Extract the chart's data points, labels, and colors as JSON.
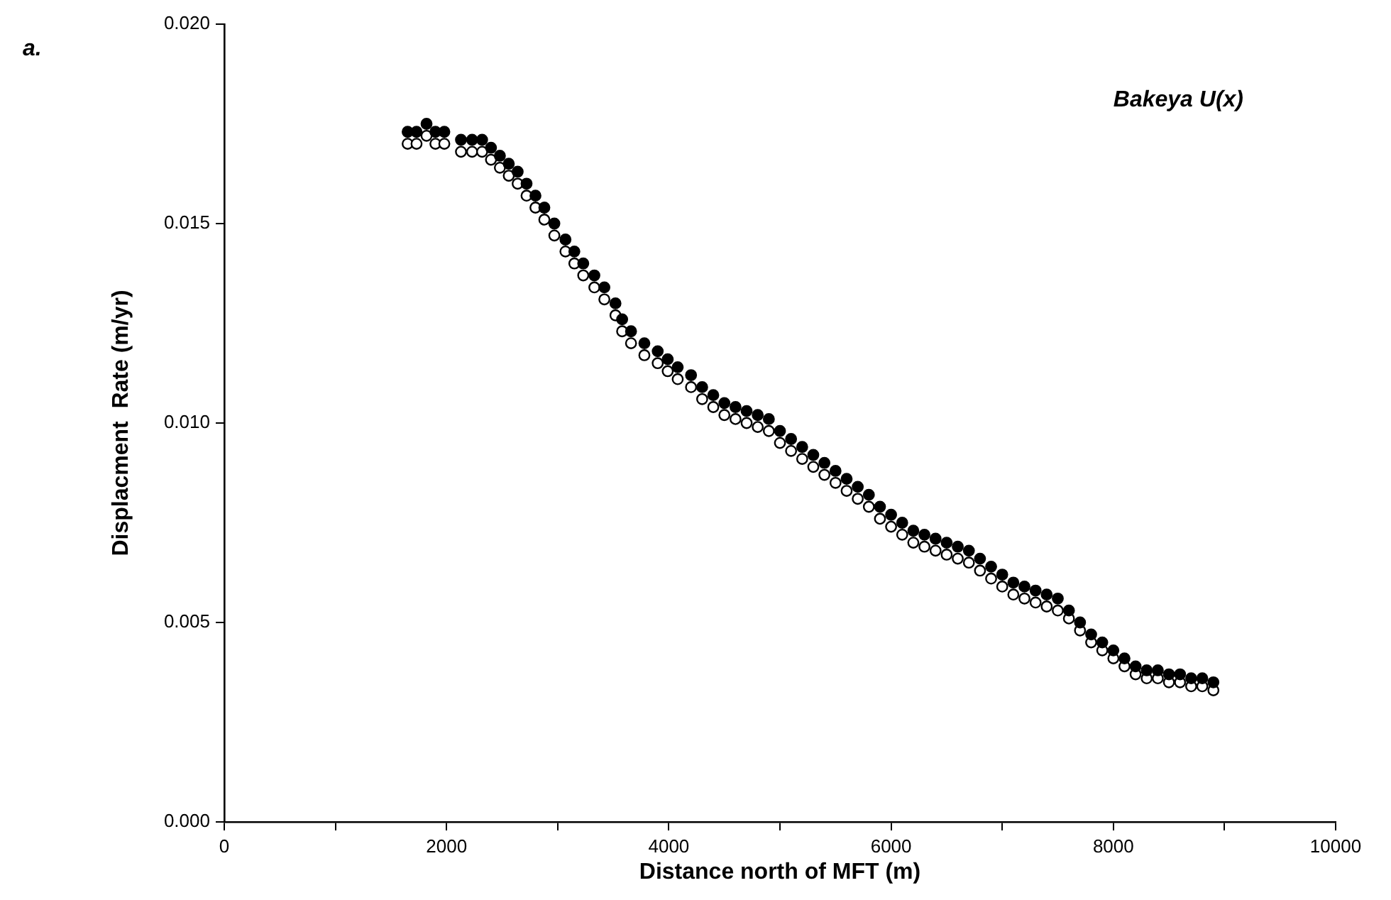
{
  "chart_data": {
    "type": "scatter",
    "xlabel": "Distance north of MFT (m)",
    "ylabel": "Displacment  Rate (m/yr)",
    "annotations": [
      "a.",
      "Bakeya U(x)"
    ],
    "x": [
      1650,
      1730,
      1820,
      1900,
      1980,
      2130,
      2230,
      2320,
      2400,
      2480,
      2560,
      2640,
      2720,
      2800,
      2880,
      2970,
      3070,
      3150,
      3230,
      3330,
      3420,
      3520,
      3580,
      3660,
      3780,
      3900,
      3990,
      4080,
      4200,
      4300,
      4400,
      4500,
      4600,
      4700,
      4800,
      4900,
      5000,
      5100,
      5200,
      5300,
      5400,
      5500,
      5600,
      5700,
      5800,
      5900,
      6000,
      6100,
      6200,
      6300,
      6400,
      6500,
      6600,
      6700,
      6800,
      6900,
      7000,
      7100,
      7200,
      7300,
      7400,
      7500,
      7600,
      7700,
      7800,
      7900,
      8000,
      8100,
      8200,
      8300,
      8400,
      8500,
      8600,
      8700,
      8800,
      8900
    ],
    "series": [
      {
        "color": "#000000",
        "values": [
          0.0173,
          0.0173,
          0.0175,
          0.0173,
          0.0173,
          0.0171,
          0.0171,
          0.0171,
          0.0169,
          0.0167,
          0.0165,
          0.0163,
          0.016,
          0.0157,
          0.0154,
          0.015,
          0.0146,
          0.0143,
          0.014,
          0.0137,
          0.0134,
          0.013,
          0.0126,
          0.0123,
          0.012,
          0.0118,
          0.0116,
          0.0114,
          0.0112,
          0.0109,
          0.0107,
          0.0105,
          0.0104,
          0.0103,
          0.0102,
          0.0101,
          0.0098,
          0.0096,
          0.0094,
          0.0092,
          0.009,
          0.0088,
          0.0086,
          0.0084,
          0.0082,
          0.0079,
          0.0077,
          0.0075,
          0.0073,
          0.0072,
          0.0071,
          0.007,
          0.0069,
          0.0068,
          0.0066,
          0.0064,
          0.0062,
          0.006,
          0.0059,
          0.0058,
          0.0057,
          0.0056,
          0.0053,
          0.005,
          0.0047,
          0.0045,
          0.0043,
          0.0041,
          0.0039,
          0.0038,
          0.0038,
          0.0037,
          0.0037,
          0.0036,
          0.0036,
          0.0035
        ]
      },
      {
        "color": "#ffffff",
        "values": [
          0.017,
          0.017,
          0.0172,
          0.017,
          0.017,
          0.0168,
          0.0168,
          0.0168,
          0.0166,
          0.0164,
          0.0162,
          0.016,
          0.0157,
          0.0154,
          0.0151,
          0.0147,
          0.0143,
          0.014,
          0.0137,
          0.0134,
          0.0131,
          0.0127,
          0.0123,
          0.012,
          0.0117,
          0.0115,
          0.0113,
          0.0111,
          0.0109,
          0.0106,
          0.0104,
          0.0102,
          0.0101,
          0.01,
          0.0099,
          0.0098,
          0.0095,
          0.0093,
          0.0091,
          0.0089,
          0.0087,
          0.0085,
          0.0083,
          0.0081,
          0.0079,
          0.0076,
          0.0074,
          0.0072,
          0.007,
          0.0069,
          0.0068,
          0.0067,
          0.0066,
          0.0065,
          0.0063,
          0.0061,
          0.0059,
          0.0057,
          0.0056,
          0.0055,
          0.0054,
          0.0053,
          0.0051,
          0.0048,
          0.0045,
          0.0043,
          0.0041,
          0.0039,
          0.0037,
          0.0036,
          0.0036,
          0.0035,
          0.0035,
          0.0034,
          0.0034,
          0.0033
        ]
      }
    ],
    "xlim": [
      0,
      10000
    ],
    "xticks": [
      0,
      {
        "value": 1000,
        "label": null
      },
      2000,
      {
        "value": 3000,
        "label": null
      },
      4000,
      {
        "value": 5000,
        "label": null
      },
      6000,
      {
        "value": 7000,
        "label": null
      },
      8000,
      {
        "value": 9000,
        "label": null
      },
      10000
    ],
    "ylim": [
      0,
      0.02
    ],
    "yticks": [
      {
        "value": 0,
        "label": "0.000"
      },
      0.005,
      {
        "value": 0.01,
        "label": "0.010"
      },
      0.015,
      {
        "value": 0.02,
        "label": "0.020"
      }
    ],
    "grid": false,
    "legend": false,
    "marker": "circle"
  }
}
